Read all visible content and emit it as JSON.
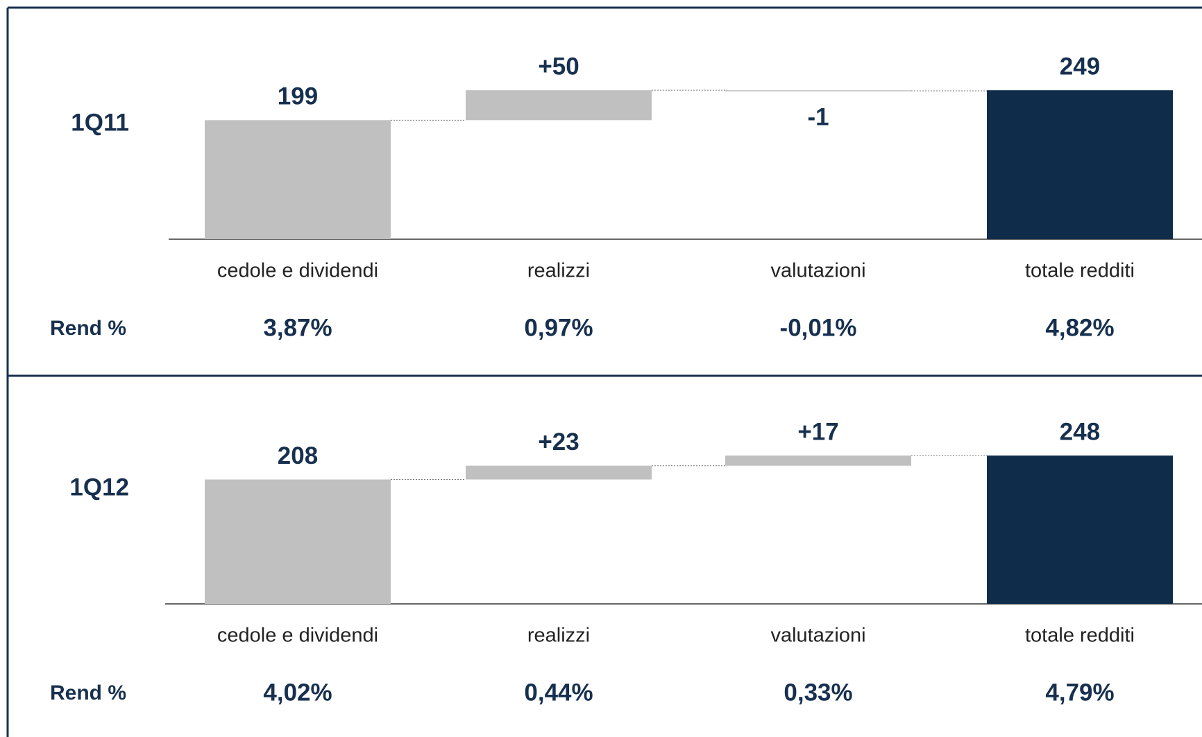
{
  "chart_data": [
    {
      "type": "waterfall",
      "title": "1Q11",
      "categories": [
        "cedole e dividendi",
        "realizzi",
        "valutazioni",
        "totale redditi"
      ],
      "values": [
        199,
        50,
        -1,
        249
      ],
      "value_labels": [
        "199",
        "+50",
        "-1",
        "249"
      ],
      "measure": [
        "absolute",
        "relative",
        "relative",
        "total"
      ],
      "colors": [
        "#c0c0c0",
        "#c0c0c0",
        "#c0c0c0",
        "#0f2d4b"
      ],
      "ylim": [
        0,
        255
      ],
      "yield_label": "Rend %",
      "yields": [
        "3,87%",
        "0,97%",
        "-0,01%",
        "4,82%"
      ]
    },
    {
      "type": "waterfall",
      "title": "1Q12",
      "categories": [
        "cedole e dividendi",
        "realizzi",
        "valutazioni",
        "totale redditi"
      ],
      "values": [
        208,
        23,
        17,
        248
      ],
      "value_labels": [
        "208",
        "+23",
        "+17",
        "248"
      ],
      "measure": [
        "absolute",
        "relative",
        "relative",
        "total"
      ],
      "colors": [
        "#c0c0c0",
        "#c0c0c0",
        "#c0c0c0",
        "#0f2d4b"
      ],
      "ylim": [
        0,
        255
      ],
      "yield_label": "Rend %",
      "yields": [
        "4,02%",
        "0,44%",
        "0,33%",
        "4,79%"
      ]
    }
  ]
}
